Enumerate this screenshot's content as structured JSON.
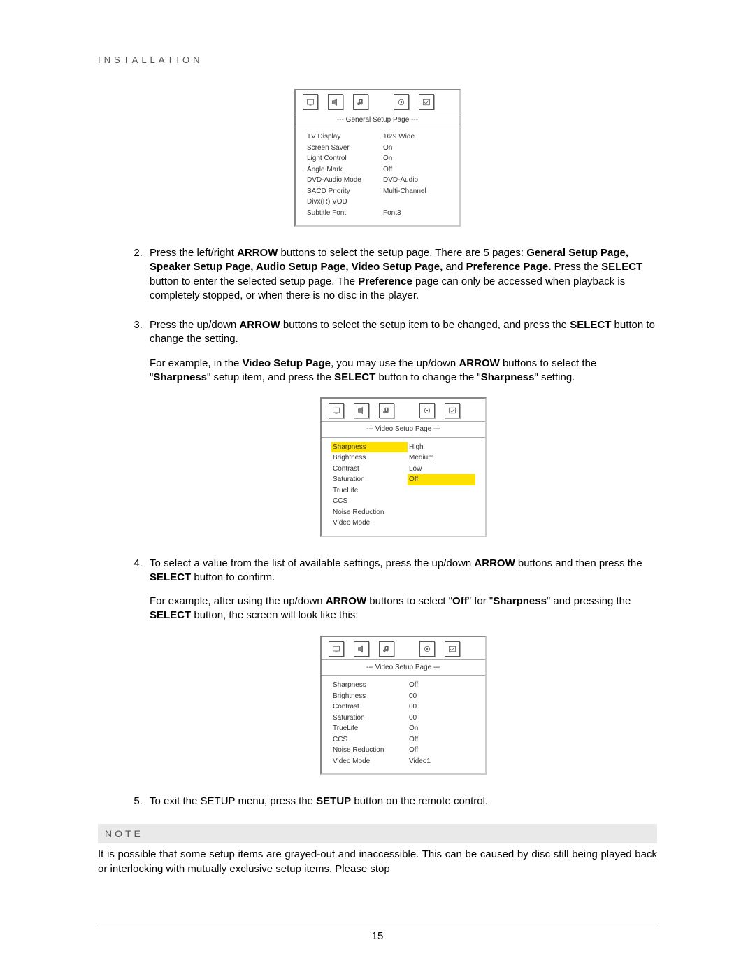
{
  "header": "INSTALLATION",
  "pageNumber": "15",
  "menus": {
    "general": {
      "title": "--- General Setup Page ---",
      "rows": [
        {
          "label": "TV Display",
          "value": "16:9 Wide"
        },
        {
          "label": "Screen Saver",
          "value": "On"
        },
        {
          "label": "Light Control",
          "value": "On"
        },
        {
          "label": "Angle Mark",
          "value": "Off"
        },
        {
          "label": "DVD-Audio Mode",
          "value": "DVD-Audio"
        },
        {
          "label": "SACD Priority",
          "value": "Multi-Channel"
        },
        {
          "label": "Divx(R)   VOD",
          "value": ""
        },
        {
          "label": "Subtitle Font",
          "value": "Font3"
        }
      ]
    },
    "video1": {
      "title": "--- Video Setup Page ---",
      "rows": [
        {
          "label": "Sharpness",
          "value": "High",
          "hlLabel": true
        },
        {
          "label": "Brightness",
          "value": "Medium"
        },
        {
          "label": "Contrast",
          "value": "Low"
        },
        {
          "label": "Saturation",
          "value": "Off",
          "hlValue": true
        },
        {
          "label": "TrueLife",
          "value": ""
        },
        {
          "label": "CCS",
          "value": ""
        },
        {
          "label": "Noise Reduction",
          "value": ""
        },
        {
          "label": "Video Mode",
          "value": ""
        }
      ]
    },
    "video2": {
      "title": "--- Video Setup Page ---",
      "rows": [
        {
          "label": "Sharpness",
          "value": "Off"
        },
        {
          "label": "Brightness",
          "value": "00"
        },
        {
          "label": "Contrast",
          "value": "00"
        },
        {
          "label": "Saturation",
          "value": "00"
        },
        {
          "label": "TrueLife",
          "value": "On"
        },
        {
          "label": "CCS",
          "value": "Off"
        },
        {
          "label": "Noise Reduction",
          "value": "Off"
        },
        {
          "label": "Video Mode",
          "value": "Video1"
        }
      ]
    }
  },
  "steps": {
    "s2": [
      "Press the left/right ",
      {
        "b": "ARROW"
      },
      " buttons to select the setup page.  There are 5 pages: ",
      {
        "b": "General Setup Page, Speaker Setup Page, Audio Setup Page, Video Setup Page,"
      },
      " and ",
      {
        "b": "Preference Page."
      },
      "  Press the ",
      {
        "b": "SELECT"
      },
      " button to enter the selected setup page.  The ",
      {
        "b": "Preference"
      },
      " page can only be accessed when playback is completely stopped, or when there is no disc in the player."
    ],
    "s3a": [
      "Press the up/down ",
      {
        "b": "ARROW"
      },
      " buttons to select the setup item to be changed, and press the ",
      {
        "b": "SELECT"
      },
      " button to change the setting."
    ],
    "s3b": [
      "For example, in the ",
      {
        "b": "Video Setup Page"
      },
      ", you may use the up/down ",
      {
        "b": "ARROW"
      },
      " buttons to select the \"",
      {
        "b": "Sharpness"
      },
      "\" setup item, and press the ",
      {
        "b": "SELECT"
      },
      " button to change the \"",
      {
        "b": "Sharpness"
      },
      "\" setting."
    ],
    "s4a": [
      "To select a value from the list of available settings, press the up/down ",
      {
        "b": "ARROW"
      },
      " buttons and then press the ",
      {
        "b": "SELECT"
      },
      " button to confirm."
    ],
    "s4b": [
      "For example, after using the up/down ",
      {
        "b": "ARROW"
      },
      " buttons to select \"",
      {
        "b": "Off"
      },
      "\" for \"",
      {
        "b": "Sharpness"
      },
      "\" and pressing the ",
      {
        "b": "SELECT"
      },
      " button, the screen will look like this:"
    ],
    "s5": [
      "To exit the SETUP menu, press the ",
      {
        "b": "SETUP"
      },
      " button on the remote control."
    ]
  },
  "note": {
    "title": "NOTE",
    "body": "It is possible that some setup items are grayed-out and inaccessible.  This can be caused by disc still being played back or interlocking with mutually exclusive setup items.  Please stop"
  },
  "icons": {
    "stroke": "#555555",
    "fill": "#888888"
  }
}
